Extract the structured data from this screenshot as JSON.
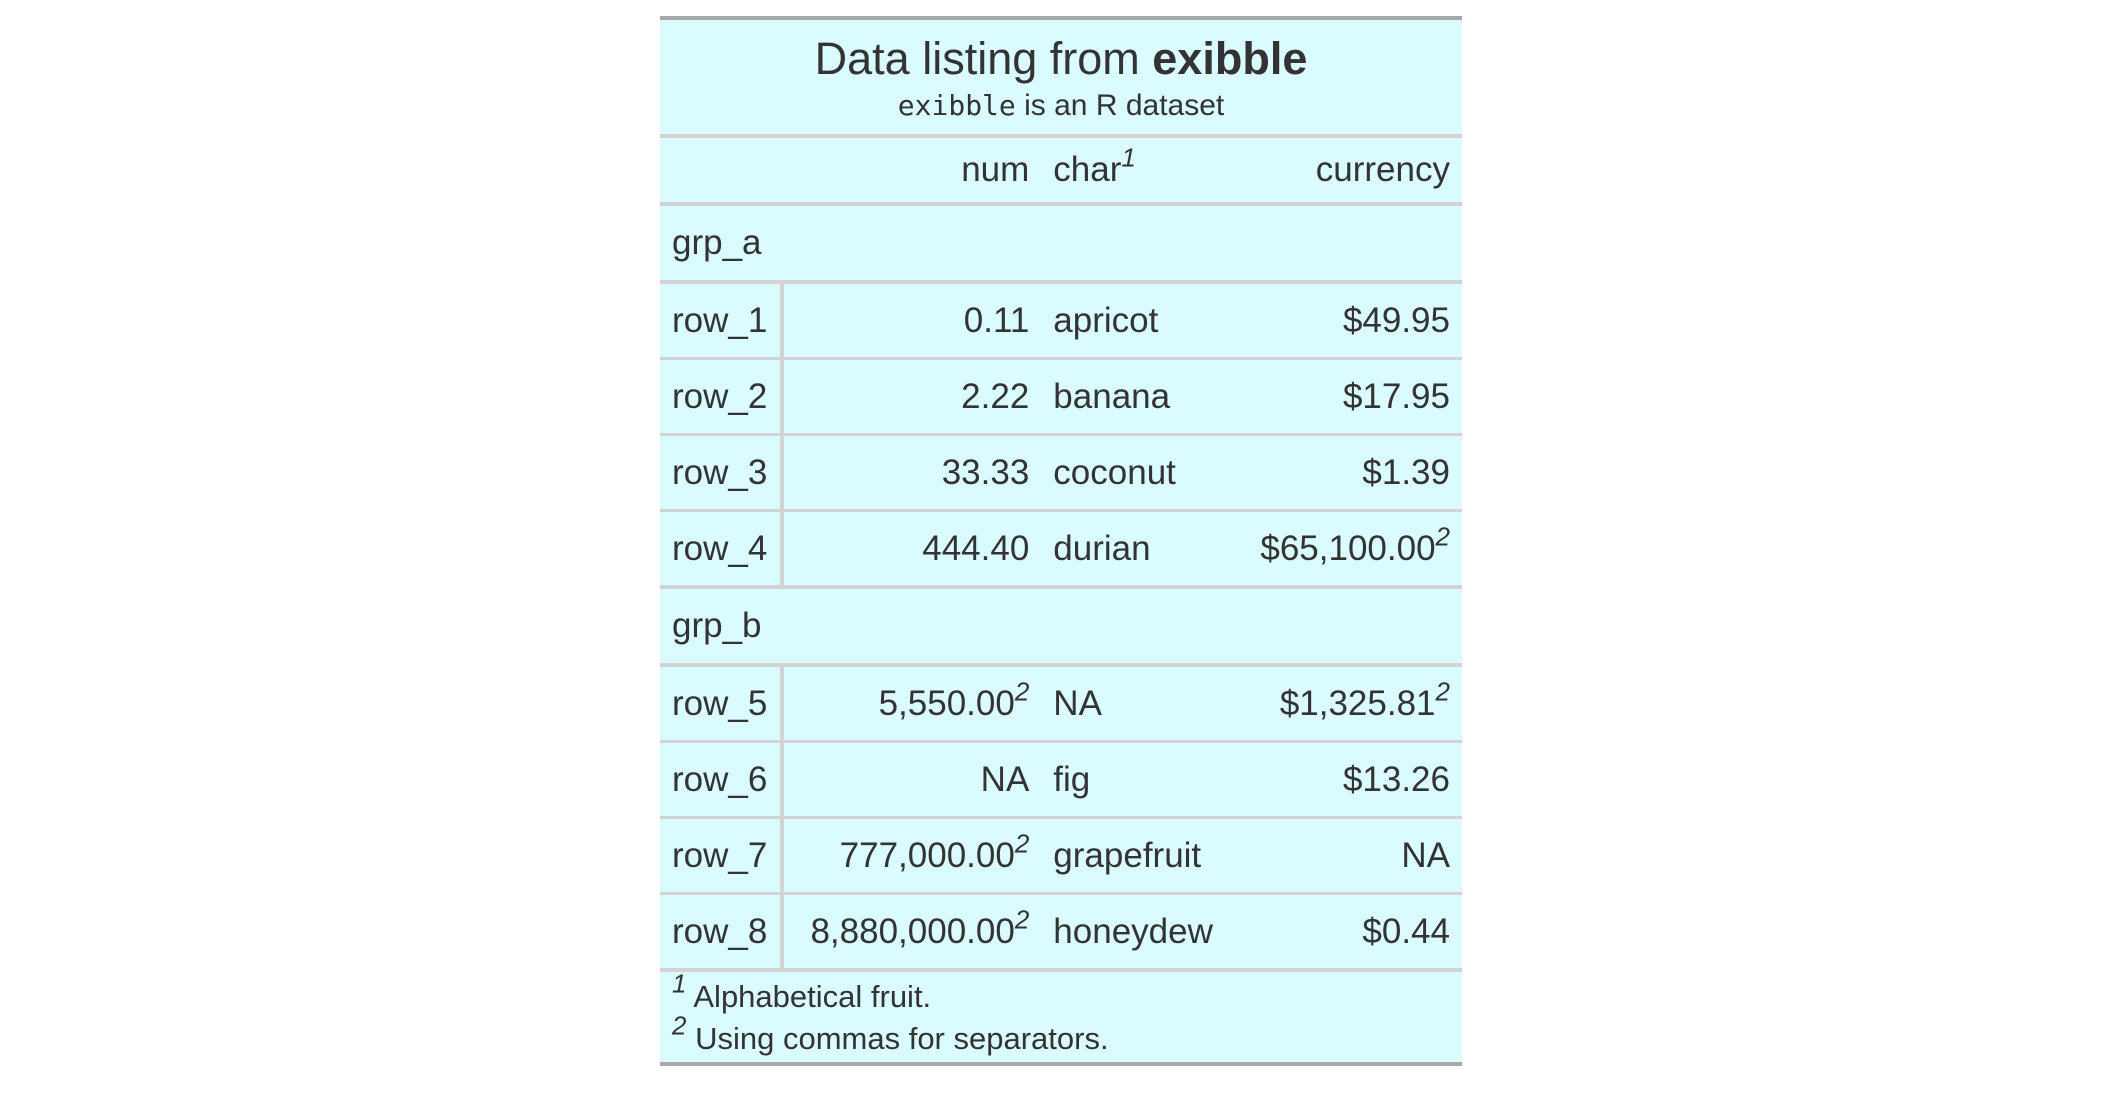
{
  "table": {
    "title_prefix": "Data listing from ",
    "title_bold": "exibble",
    "subtitle_code": "exibble",
    "subtitle_rest": " is an R dataset",
    "columns": {
      "stub": "",
      "num": "num",
      "char": "char",
      "char_mark": "1",
      "currency": "currency"
    },
    "groups": [
      {
        "label": "grp_a",
        "rows": [
          {
            "stub": "row_1",
            "num": "0.11",
            "num_mark": "",
            "char": "apricot",
            "currency": "$49.95",
            "currency_mark": ""
          },
          {
            "stub": "row_2",
            "num": "2.22",
            "num_mark": "",
            "char": "banana",
            "currency": "$17.95",
            "currency_mark": ""
          },
          {
            "stub": "row_3",
            "num": "33.33",
            "num_mark": "",
            "char": "coconut",
            "currency": "$1.39",
            "currency_mark": ""
          },
          {
            "stub": "row_4",
            "num": "444.40",
            "num_mark": "",
            "char": "durian",
            "currency": "$65,100.00",
            "currency_mark": "2"
          }
        ]
      },
      {
        "label": "grp_b",
        "rows": [
          {
            "stub": "row_5",
            "num": "5,550.00",
            "num_mark": "2",
            "char": "NA",
            "currency": "$1,325.81",
            "currency_mark": "2"
          },
          {
            "stub": "row_6",
            "num": "NA",
            "num_mark": "",
            "char": "fig",
            "currency": "$13.26",
            "currency_mark": ""
          },
          {
            "stub": "row_7",
            "num": "777,000.00",
            "num_mark": "2",
            "char": "grapefruit",
            "currency": "NA",
            "currency_mark": ""
          },
          {
            "stub": "row_8",
            "num": "8,880,000.00",
            "num_mark": "2",
            "char": "honeydew",
            "currency": "$0.44",
            "currency_mark": ""
          }
        ]
      }
    ],
    "footnotes": [
      {
        "mark": "1",
        "text": "Alphabetical fruit."
      },
      {
        "mark": "2",
        "text": "Using commas for separators."
      }
    ],
    "colors": {
      "background": "#dafbff",
      "outer_border": "#a8a8a8",
      "inner_border": "#d3d3d3",
      "text": "#333333"
    }
  }
}
